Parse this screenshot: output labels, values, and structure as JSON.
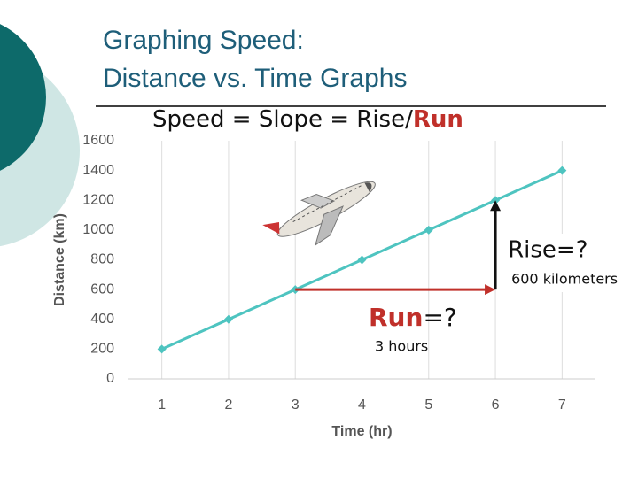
{
  "chart_data": {
    "type": "line",
    "title_lines": [
      "Graphing Speed:",
      "Distance vs. Time Graphs"
    ],
    "subtitle_parts": [
      "Speed = Slope = Rise/",
      "Run"
    ],
    "x_label": "Time (hr)",
    "y_label": "Distance (km)",
    "x": [
      1,
      2,
      3,
      4,
      5,
      6,
      7
    ],
    "series": [
      {
        "name": "Distance",
        "color": "#4ec4c0",
        "values": [
          200,
          400,
          600,
          800,
          1000,
          1200,
          1400
        ]
      }
    ],
    "xlim": [
      0.5,
      7.5
    ],
    "xticks": [
      1,
      2,
      3,
      4,
      5,
      6,
      7
    ],
    "ylim": [
      0,
      1600
    ],
    "yticks": [
      0,
      200,
      400,
      600,
      800,
      1000,
      1200,
      1400,
      1600
    ],
    "grid": "x",
    "annotations": {
      "rise": "Rise=?",
      "rise_value": "600 kilometers",
      "run": "Run",
      "run_suffix": "=?",
      "run_value": "3 hours"
    }
  }
}
